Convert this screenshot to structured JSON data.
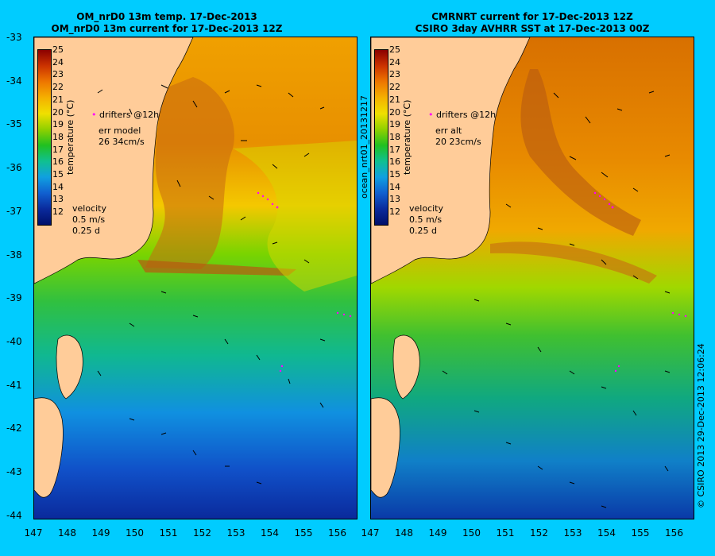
{
  "left": {
    "title_line1": "OM_nrD0 13m temp. 17-Dec-2013",
    "title_line2": "OM_nrD0 13m current for 17-Dec-2013 12Z",
    "drifters": "drifters @12h",
    "err_label": "err model",
    "err_values": "26 34cm/s",
    "velocity_label": "velocity",
    "velocity_scale": "0.5 m/s",
    "velocity_days": "0.25 d",
    "colorbar_label": "temperature (°C)"
  },
  "right": {
    "title_line1": "CMRNRT current for 17-Dec-2013 12Z",
    "title_line2": "CSIRO 3day AVHRR SST at 17-Dec-2013 00Z",
    "drifters": "drifters @12h",
    "err_label": "err alt",
    "err_values": "20 23cm/s",
    "velocity_label": "velocity",
    "velocity_scale": "0.5 m/s",
    "velocity_days": "0.25 d",
    "colorbar_label": "temperature (°C)"
  },
  "side_label": "ocean_nrt01_20131217",
  "credit": "© CSIRO 2013   29-Dec-2013 12:06:24",
  "lat_ticks": [
    "-33",
    "-34",
    "-35",
    "-36",
    "-37",
    "-38",
    "-39",
    "-40",
    "-41",
    "-42",
    "-43",
    "-44"
  ],
  "lon_ticks": [
    "147",
    "148",
    "149",
    "150",
    "151",
    "152",
    "153",
    "154",
    "155",
    "156"
  ],
  "colorbar_ticks": [
    "25",
    "24",
    "23",
    "22",
    "21",
    "20",
    "19",
    "18",
    "17",
    "16",
    "15",
    "14",
    "13",
    "12"
  ],
  "colors": {
    "background": "#00ccff",
    "land": "#ffcc99",
    "warm": "#cc6600",
    "cold": "#0a1a8c",
    "drifter": "#ff00ff"
  }
}
